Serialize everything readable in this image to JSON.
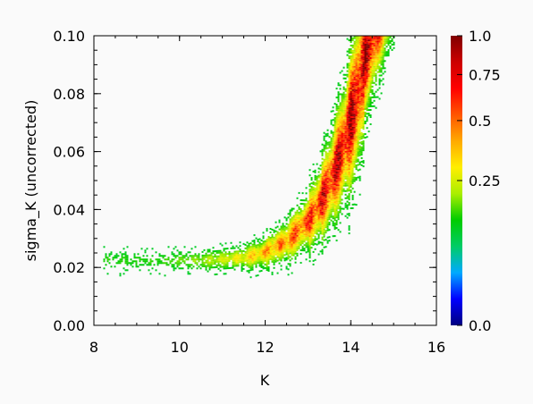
{
  "chart_data": {
    "type": "heatmap",
    "xlabel": "K",
    "ylabel": "sigma_K (uncorrected)",
    "xlim": [
      8,
      16
    ],
    "ylim": [
      0.0,
      0.1
    ],
    "x_ticks": [
      8,
      10,
      12,
      14,
      16
    ],
    "x_tick_labels": [
      "8",
      "10",
      "12",
      "14",
      "16"
    ],
    "y_ticks": [
      0.0,
      0.02,
      0.04,
      0.06,
      0.08,
      0.1
    ],
    "y_tick_labels": [
      "0.00",
      "0.02",
      "0.04",
      "0.06",
      "0.08",
      "0.10"
    ],
    "colorbar": {
      "ticks": [
        0.0,
        0.25,
        0.5,
        0.75,
        1.0
      ],
      "tick_labels": [
        "0.0",
        "0.25",
        "0.5",
        "0.75",
        "1.0"
      ],
      "colormap": [
        "#000080",
        "#0000ff",
        "#00aaff",
        "#00cc66",
        "#00cc00",
        "#aaee00",
        "#ffee00",
        "#ffaa00",
        "#ff5500",
        "#ff0000",
        "#cc0000",
        "#800000"
      ]
    },
    "ridge": {
      "K": [
        8.3,
        9.0,
        10.0,
        10.5,
        11.0,
        11.5,
        12.0,
        12.5,
        13.0,
        13.3,
        13.6,
        13.9,
        14.1,
        14.3,
        14.5
      ],
      "sigma_K": [
        0.022,
        0.022,
        0.022,
        0.022,
        0.0225,
        0.023,
        0.025,
        0.029,
        0.036,
        0.043,
        0.053,
        0.066,
        0.078,
        0.091,
        0.1
      ]
    },
    "density_max": 1.0
  }
}
